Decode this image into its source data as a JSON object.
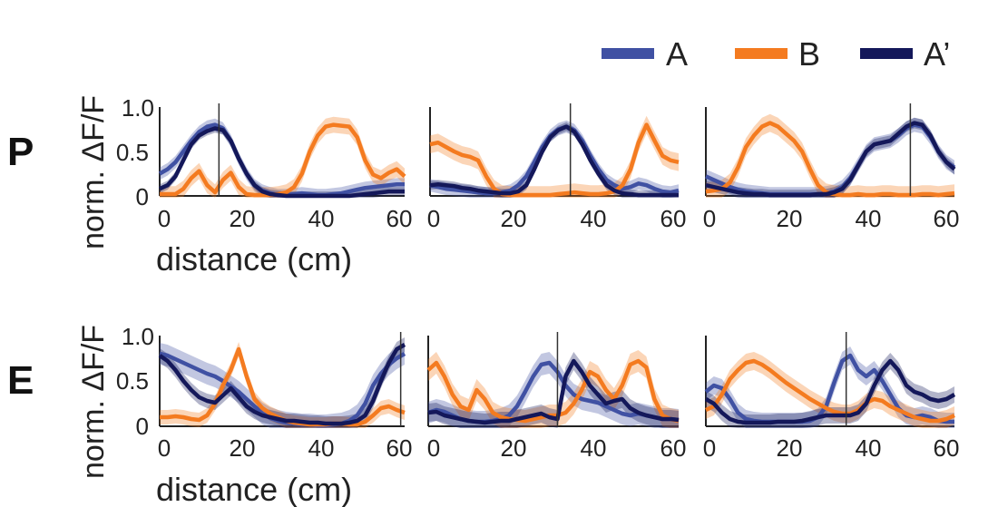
{
  "legend": [
    {
      "label": "A",
      "color": "#4051A3"
    },
    {
      "label": "B",
      "color": "#F47B20"
    },
    {
      "label": "A’",
      "color": "#14185A"
    }
  ],
  "rows": [
    {
      "label": "P",
      "ylabel": "norm. ΔF/F",
      "xlabel": "distance (cm)"
    },
    {
      "label": "E",
      "ylabel": "norm. ΔF/F",
      "xlabel": "distance (cm)"
    }
  ],
  "y_ticks": [
    "0",
    "0.5",
    "1.0"
  ],
  "x_ticks": [
    "0",
    "20",
    "40",
    "60"
  ],
  "chart_data": [
    {
      "type": "line",
      "row": "P",
      "panel": 1,
      "xlim": [
        0,
        62
      ],
      "ylim": [
        0,
        1
      ],
      "marker_x": 15,
      "x": [
        0,
        2,
        4,
        6,
        8,
        10,
        12,
        14,
        16,
        18,
        20,
        22,
        24,
        26,
        28,
        30,
        32,
        34,
        36,
        38,
        40,
        42,
        44,
        46,
        48,
        50,
        52,
        54,
        56,
        58,
        60,
        62
      ],
      "series": [
        {
          "name": "A",
          "values": [
            0.25,
            0.3,
            0.38,
            0.5,
            0.62,
            0.72,
            0.78,
            0.8,
            0.76,
            0.62,
            0.42,
            0.25,
            0.12,
            0.06,
            0.03,
            0.01,
            0.01,
            0.02,
            0.03,
            0.02,
            0.01,
            0.01,
            0.02,
            0.03,
            0.05,
            0.07,
            0.09,
            0.1,
            0.11,
            0.12,
            0.13,
            0.13
          ],
          "band": 0.07
        },
        {
          "name": "B",
          "values": [
            0.02,
            0.02,
            0.02,
            0.08,
            0.2,
            0.28,
            0.12,
            0.04,
            0.18,
            0.26,
            0.1,
            0.02,
            0.01,
            0.01,
            0.01,
            0.02,
            0.04,
            0.1,
            0.25,
            0.5,
            0.68,
            0.78,
            0.8,
            0.79,
            0.78,
            0.66,
            0.4,
            0.24,
            0.2,
            0.26,
            0.3,
            0.22
          ],
          "band": 0.09
        },
        {
          "name": "A’",
          "values": [
            0.08,
            0.12,
            0.22,
            0.4,
            0.58,
            0.68,
            0.73,
            0.76,
            0.74,
            0.62,
            0.42,
            0.25,
            0.12,
            0.05,
            0.02,
            0.01,
            0.0,
            0.0,
            0.0,
            0.0,
            0.0,
            0.0,
            0.0,
            0.0,
            0.0,
            0.01,
            0.02,
            0.03,
            0.04,
            0.05,
            0.05,
            0.05
          ],
          "band": 0.05
        }
      ]
    },
    {
      "type": "line",
      "row": "P",
      "panel": 2,
      "xlim": [
        0,
        62
      ],
      "ylim": [
        0,
        1
      ],
      "marker_x": 35,
      "x": [
        0,
        2,
        4,
        6,
        8,
        10,
        12,
        14,
        16,
        18,
        20,
        22,
        24,
        26,
        28,
        30,
        32,
        34,
        36,
        38,
        40,
        42,
        44,
        46,
        48,
        50,
        52,
        54,
        56,
        58,
        60,
        62
      ],
      "series": [
        {
          "name": "A",
          "values": [
            0.12,
            0.1,
            0.08,
            0.07,
            0.06,
            0.05,
            0.04,
            0.03,
            0.03,
            0.04,
            0.06,
            0.12,
            0.22,
            0.38,
            0.55,
            0.68,
            0.75,
            0.78,
            0.74,
            0.62,
            0.45,
            0.3,
            0.18,
            0.12,
            0.08,
            0.1,
            0.14,
            0.12,
            0.08,
            0.05,
            0.04,
            0.06
          ],
          "band": 0.07
        },
        {
          "name": "B",
          "values": [
            0.58,
            0.6,
            0.55,
            0.5,
            0.46,
            0.44,
            0.4,
            0.22,
            0.08,
            0.02,
            0.01,
            0.01,
            0.01,
            0.01,
            0.01,
            0.01,
            0.02,
            0.03,
            0.04,
            0.03,
            0.02,
            0.02,
            0.03,
            0.05,
            0.12,
            0.3,
            0.6,
            0.8,
            0.62,
            0.45,
            0.4,
            0.38
          ],
          "band": 0.1
        },
        {
          "name": "A’",
          "values": [
            0.12,
            0.13,
            0.12,
            0.11,
            0.09,
            0.08,
            0.06,
            0.05,
            0.04,
            0.03,
            0.03,
            0.05,
            0.12,
            0.3,
            0.5,
            0.66,
            0.74,
            0.78,
            0.72,
            0.58,
            0.4,
            0.25,
            0.12,
            0.06,
            0.03,
            0.02,
            0.01,
            0.01,
            0.01,
            0.01,
            0.01,
            0.01
          ],
          "band": 0.05
        }
      ]
    },
    {
      "type": "line",
      "row": "P",
      "panel": 3,
      "xlim": [
        0,
        62
      ],
      "ylim": [
        0,
        1
      ],
      "marker_x": 51,
      "x": [
        0,
        2,
        4,
        6,
        8,
        10,
        12,
        14,
        16,
        18,
        20,
        22,
        24,
        26,
        28,
        30,
        32,
        34,
        36,
        38,
        40,
        42,
        44,
        46,
        48,
        50,
        52,
        54,
        56,
        58,
        60,
        62
      ],
      "series": [
        {
          "name": "A",
          "values": [
            0.22,
            0.18,
            0.14,
            0.1,
            0.07,
            0.05,
            0.04,
            0.03,
            0.02,
            0.02,
            0.02,
            0.02,
            0.02,
            0.02,
            0.02,
            0.03,
            0.05,
            0.1,
            0.2,
            0.35,
            0.5,
            0.58,
            0.6,
            0.62,
            0.68,
            0.76,
            0.8,
            0.78,
            0.66,
            0.5,
            0.38,
            0.32
          ],
          "band": 0.08
        },
        {
          "name": "B",
          "values": [
            0.05,
            0.06,
            0.08,
            0.15,
            0.32,
            0.55,
            0.68,
            0.78,
            0.82,
            0.78,
            0.7,
            0.62,
            0.5,
            0.3,
            0.12,
            0.04,
            0.02,
            0.01,
            0.01,
            0.02,
            0.01,
            0.01,
            0.02,
            0.02,
            0.01,
            0.01,
            0.01,
            0.02,
            0.02,
            0.01,
            0.02,
            0.03
          ],
          "band": 0.1
        },
        {
          "name": "A’",
          "values": [
            0.12,
            0.1,
            0.08,
            0.06,
            0.04,
            0.03,
            0.02,
            0.02,
            0.01,
            0.01,
            0.01,
            0.01,
            0.01,
            0.01,
            0.02,
            0.02,
            0.04,
            0.08,
            0.18,
            0.34,
            0.5,
            0.58,
            0.6,
            0.62,
            0.7,
            0.78,
            0.82,
            0.8,
            0.68,
            0.5,
            0.38,
            0.3
          ],
          "band": 0.06
        }
      ]
    },
    {
      "type": "line",
      "row": "E",
      "panel": 1,
      "xlim": [
        0,
        62
      ],
      "ylim": [
        0,
        1
      ],
      "marker_x": 61,
      "x": [
        0,
        2,
        4,
        6,
        8,
        10,
        12,
        14,
        16,
        18,
        20,
        22,
        24,
        26,
        28,
        30,
        32,
        34,
        36,
        38,
        40,
        42,
        44,
        46,
        48,
        50,
        52,
        54,
        56,
        58,
        60,
        62
      ],
      "series": [
        {
          "name": "A",
          "values": [
            0.8,
            0.78,
            0.74,
            0.7,
            0.66,
            0.62,
            0.58,
            0.55,
            0.5,
            0.44,
            0.38,
            0.3,
            0.22,
            0.14,
            0.09,
            0.06,
            0.04,
            0.03,
            0.02,
            0.02,
            0.01,
            0.01,
            0.02,
            0.03,
            0.06,
            0.12,
            0.25,
            0.45,
            0.58,
            0.68,
            0.75,
            0.8
          ],
          "band": 0.12
        },
        {
          "name": "B",
          "values": [
            0.1,
            0.1,
            0.11,
            0.1,
            0.08,
            0.07,
            0.12,
            0.25,
            0.45,
            0.62,
            0.85,
            0.55,
            0.3,
            0.2,
            0.14,
            0.1,
            0.06,
            0.04,
            0.03,
            0.02,
            0.02,
            0.02,
            0.03,
            0.03,
            0.02,
            0.02,
            0.05,
            0.12,
            0.2,
            0.22,
            0.18,
            0.15
          ],
          "band": 0.08
        },
        {
          "name": "A’",
          "values": [
            0.78,
            0.72,
            0.62,
            0.5,
            0.4,
            0.32,
            0.28,
            0.26,
            0.34,
            0.42,
            0.32,
            0.22,
            0.16,
            0.12,
            0.1,
            0.08,
            0.06,
            0.06,
            0.05,
            0.04,
            0.04,
            0.03,
            0.03,
            0.03,
            0.04,
            0.06,
            0.12,
            0.28,
            0.5,
            0.7,
            0.85,
            0.9
          ],
          "band": 0.08
        }
      ]
    },
    {
      "type": "line",
      "row": "E",
      "panel": 2,
      "xlim": [
        0,
        62
      ],
      "ylim": [
        0,
        1
      ],
      "marker_x": 32,
      "x": [
        0,
        2,
        4,
        6,
        8,
        10,
        12,
        14,
        16,
        18,
        20,
        22,
        24,
        26,
        28,
        30,
        32,
        34,
        36,
        38,
        40,
        42,
        44,
        46,
        48,
        50,
        52,
        54,
        56,
        58,
        60,
        62
      ],
      "series": [
        {
          "name": "A",
          "values": [
            0.15,
            0.18,
            0.16,
            0.12,
            0.08,
            0.06,
            0.05,
            0.05,
            0.06,
            0.08,
            0.12,
            0.22,
            0.38,
            0.55,
            0.68,
            0.7,
            0.6,
            0.45,
            0.35,
            0.3,
            0.28,
            0.26,
            0.22,
            0.18,
            0.14,
            0.12,
            0.14,
            0.12,
            0.1,
            0.08,
            0.08,
            0.07
          ],
          "band": 0.12
        },
        {
          "name": "B",
          "values": [
            0.62,
            0.7,
            0.55,
            0.35,
            0.22,
            0.18,
            0.4,
            0.3,
            0.15,
            0.1,
            0.08,
            0.07,
            0.06,
            0.08,
            0.1,
            0.12,
            0.12,
            0.15,
            0.25,
            0.4,
            0.6,
            0.55,
            0.4,
            0.3,
            0.45,
            0.68,
            0.72,
            0.65,
            0.3,
            0.12,
            0.08,
            0.06
          ],
          "band": 0.12
        },
        {
          "name": "A’",
          "values": [
            0.15,
            0.16,
            0.12,
            0.1,
            0.08,
            0.06,
            0.05,
            0.04,
            0.05,
            0.06,
            0.06,
            0.08,
            0.1,
            0.12,
            0.14,
            0.1,
            0.08,
            0.55,
            0.72,
            0.6,
            0.45,
            0.35,
            0.25,
            0.28,
            0.3,
            0.2,
            0.15,
            0.12,
            0.1,
            0.08,
            0.08,
            0.07
          ],
          "band": 0.1
        }
      ]
    },
    {
      "type": "line",
      "row": "E",
      "panel": 3,
      "xlim": [
        0,
        62
      ],
      "ylim": [
        0,
        1
      ],
      "marker_x": 35,
      "x": [
        0,
        2,
        4,
        6,
        8,
        10,
        12,
        14,
        16,
        18,
        20,
        22,
        24,
        26,
        28,
        30,
        32,
        34,
        36,
        38,
        40,
        42,
        44,
        46,
        48,
        50,
        52,
        54,
        56,
        58,
        60,
        62
      ],
      "series": [
        {
          "name": "A",
          "values": [
            0.38,
            0.45,
            0.42,
            0.3,
            0.15,
            0.08,
            0.06,
            0.05,
            0.05,
            0.05,
            0.05,
            0.05,
            0.05,
            0.06,
            0.1,
            0.22,
            0.48,
            0.72,
            0.78,
            0.62,
            0.55,
            0.62,
            0.5,
            0.35,
            0.2,
            0.12,
            0.1,
            0.12,
            0.1,
            0.06,
            0.05,
            0.05
          ],
          "band": 0.1
        },
        {
          "name": "B",
          "values": [
            0.18,
            0.22,
            0.35,
            0.52,
            0.62,
            0.7,
            0.72,
            0.68,
            0.62,
            0.55,
            0.48,
            0.42,
            0.36,
            0.3,
            0.25,
            0.2,
            0.16,
            0.14,
            0.14,
            0.18,
            0.26,
            0.3,
            0.28,
            0.22,
            0.18,
            0.14,
            0.1,
            0.08,
            0.06,
            0.06,
            0.08,
            0.12
          ],
          "band": 0.1
        },
        {
          "name": "A’",
          "values": [
            0.3,
            0.25,
            0.15,
            0.08,
            0.05,
            0.04,
            0.04,
            0.04,
            0.04,
            0.05,
            0.05,
            0.05,
            0.06,
            0.08,
            0.1,
            0.12,
            0.12,
            0.12,
            0.12,
            0.15,
            0.25,
            0.45,
            0.62,
            0.72,
            0.62,
            0.45,
            0.38,
            0.35,
            0.3,
            0.28,
            0.3,
            0.35
          ],
          "band": 0.09
        }
      ]
    }
  ]
}
